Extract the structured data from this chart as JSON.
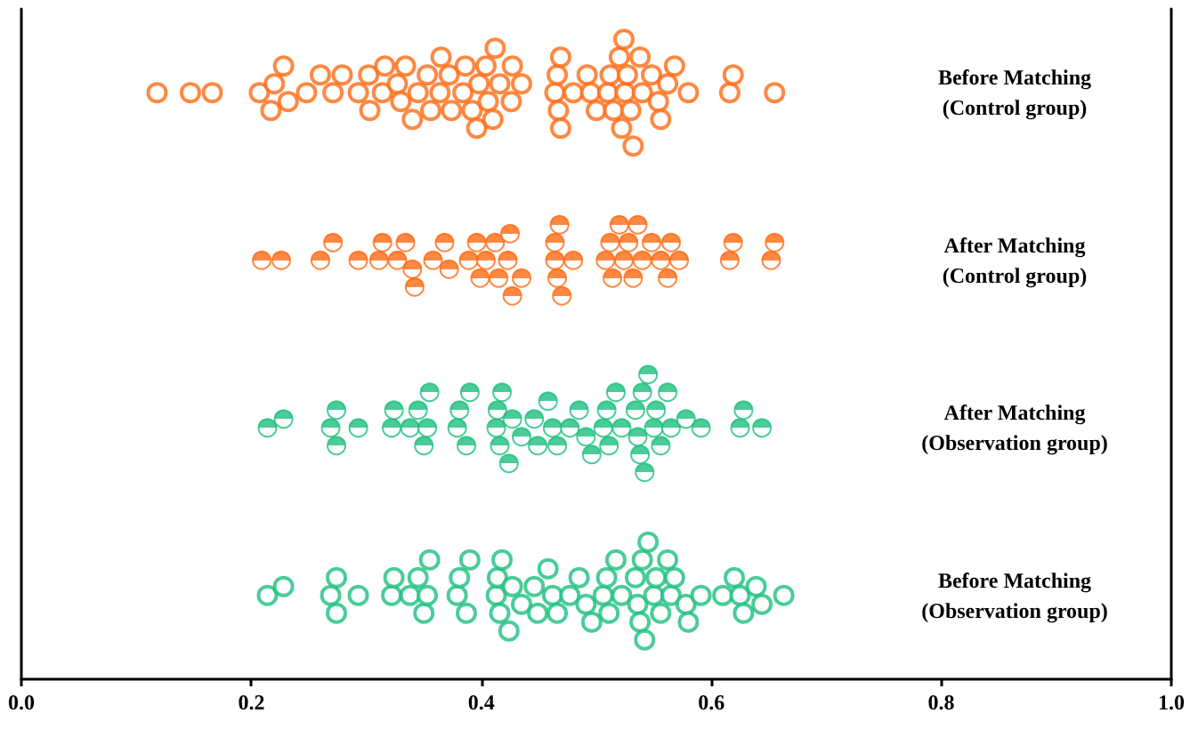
{
  "chart_data": {
    "type": "scatter",
    "orientation": "horizontal",
    "categories": [
      "Before Matching\n(Control group)",
      "After Matching\n(Control group)",
      "After Matching\n(Observation group)",
      "Before Matching\n(Observation group)"
    ],
    "xlim": [
      0,
      1
    ],
    "xticks": [
      {
        "value": 0,
        "label": "0.0"
      },
      {
        "value": 0.2,
        "label": "0.2"
      },
      {
        "value": 0.4,
        "label": "0.4"
      },
      {
        "value": 0.6,
        "label": "0.6"
      },
      {
        "value": 0.8,
        "label": "0.8"
      },
      {
        "value": 1,
        "label": "1.0"
      }
    ],
    "grid": false,
    "series": [
      {
        "color": "#ff6a13",
        "marker": "circle",
        "x": [
          "Before Matching\n(Control group)",
          "Before Matching\n(Control group)",
          "Before Matching\n(Control group)",
          "Before Matching\n(Control group)",
          "Before Matching\n(Control group)",
          "Before Matching\n(Control group)",
          "Before Matching\n(Control group)",
          "Before Matching\n(Control group)",
          "Before Matching\n(Control group)",
          "Before Matching\n(Control group)",
          "Before Matching\n(Control group)",
          "Before Matching\n(Control group)",
          "Before Matching\n(Control group)",
          "Before Matching\n(Control group)",
          "Before Matching\n(Control group)",
          "Before Matching\n(Control group)",
          "Before Matching\n(Control group)",
          "Before Matching\n(Control group)",
          "Before Matching\n(Control group)",
          "Before Matching\n(Control group)",
          "Before Matching\n(Control group)",
          "Before Matching\n(Control group)",
          "Before Matching\n(Control group)",
          "Before Matching\n(Control group)",
          "Before Matching\n(Control group)",
          "Before Matching\n(Control group)",
          "Before Matching\n(Control group)",
          "Before Matching\n(Control group)",
          "Before Matching\n(Control group)",
          "Before Matching\n(Control group)",
          "Before Matching\n(Control group)",
          "Before Matching\n(Control group)",
          "Before Matching\n(Control group)",
          "Before Matching\n(Control group)",
          "Before Matching\n(Control group)",
          "Before Matching\n(Control group)",
          "Before Matching\n(Control group)",
          "Before Matching\n(Control group)",
          "Before Matching\n(Control group)",
          "Before Matching\n(Control group)",
          "Before Matching\n(Control group)",
          "Before Matching\n(Control group)",
          "Before Matching\n(Control group)",
          "Before Matching\n(Control group)",
          "Before Matching\n(Control group)",
          "Before Matching\n(Control group)",
          "Before Matching\n(Control group)",
          "Before Matching\n(Control group)",
          "Before Matching\n(Control group)",
          "Before Matching\n(Control group)",
          "Before Matching\n(Control group)",
          "Before Matching\n(Control group)",
          "Before Matching\n(Control group)",
          "Before Matching\n(Control group)",
          "Before Matching\n(Control group)",
          "Before Matching\n(Control group)",
          "Before Matching\n(Control group)",
          "Before Matching\n(Control group)",
          "Before Matching\n(Control group)",
          "Before Matching\n(Control group)",
          "Before Matching\n(Control group)",
          "Before Matching\n(Control group)",
          "Before Matching\n(Control group)",
          "Before Matching\n(Control group)",
          "Before Matching\n(Control group)",
          "Before Matching\n(Control group)",
          "Before Matching\n(Control group)",
          "Before Matching\n(Control group)",
          "Before Matching\n(Control group)",
          "Before Matching\n(Control group)",
          "Before Matching\n(Control group)"
        ],
        "values": [
          0.118,
          0.147,
          0.166,
          0.207,
          0.22,
          0.217,
          0.228,
          0.232,
          0.248,
          0.26,
          0.271,
          0.279,
          0.293,
          0.302,
          0.303,
          0.314,
          0.316,
          0.327,
          0.33,
          0.334,
          0.34,
          0.345,
          0.353,
          0.356,
          0.364,
          0.365,
          0.372,
          0.374,
          0.384,
          0.386,
          0.392,
          0.396,
          0.398,
          0.404,
          0.406,
          0.41,
          0.412,
          0.416,
          0.426,
          0.427,
          0.435,
          0.464,
          0.466,
          0.467,
          0.469,
          0.469,
          0.48,
          0.492,
          0.495,
          0.5,
          0.51,
          0.512,
          0.515,
          0.52,
          0.522,
          0.524,
          0.525,
          0.527,
          0.53,
          0.532,
          0.538,
          0.54,
          0.548,
          0.554,
          0.556,
          0.562,
          0.568,
          0.58,
          0.616,
          0.619,
          0.655
        ]
      },
      {
        "color": "#ff6a13",
        "marker": "half-circle",
        "x": [
          "After Matching\n(Control group)",
          "After Matching\n(Control group)",
          "After Matching\n(Control group)",
          "After Matching\n(Control group)",
          "After Matching\n(Control group)",
          "After Matching\n(Control group)",
          "After Matching\n(Control group)",
          "After Matching\n(Control group)",
          "After Matching\n(Control group)",
          "After Matching\n(Control group)",
          "After Matching\n(Control group)",
          "After Matching\n(Control group)",
          "After Matching\n(Control group)",
          "After Matching\n(Control group)",
          "After Matching\n(Control group)",
          "After Matching\n(Control group)",
          "After Matching\n(Control group)",
          "After Matching\n(Control group)",
          "After Matching\n(Control group)",
          "After Matching\n(Control group)",
          "After Matching\n(Control group)",
          "After Matching\n(Control group)",
          "After Matching\n(Control group)",
          "After Matching\n(Control group)",
          "After Matching\n(Control group)",
          "After Matching\n(Control group)",
          "After Matching\n(Control group)",
          "After Matching\n(Control group)",
          "After Matching\n(Control group)",
          "After Matching\n(Control group)",
          "After Matching\n(Control group)",
          "After Matching\n(Control group)",
          "After Matching\n(Control group)",
          "After Matching\n(Control group)",
          "After Matching\n(Control group)",
          "After Matching\n(Control group)",
          "After Matching\n(Control group)",
          "After Matching\n(Control group)",
          "After Matching\n(Control group)",
          "After Matching\n(Control group)",
          "After Matching\n(Control group)",
          "After Matching\n(Control group)",
          "After Matching\n(Control group)",
          "After Matching\n(Control group)",
          "After Matching\n(Control group)",
          "After Matching\n(Control group)",
          "After Matching\n(Control group)",
          "After Matching\n(Control group)"
        ],
        "values": [
          0.209,
          0.226,
          0.26,
          0.271,
          0.293,
          0.311,
          0.314,
          0.327,
          0.334,
          0.34,
          0.342,
          0.358,
          0.368,
          0.372,
          0.389,
          0.396,
          0.399,
          0.404,
          0.412,
          0.415,
          0.423,
          0.425,
          0.427,
          0.435,
          0.464,
          0.464,
          0.466,
          0.468,
          0.47,
          0.48,
          0.508,
          0.512,
          0.514,
          0.52,
          0.524,
          0.528,
          0.532,
          0.536,
          0.54,
          0.548,
          0.556,
          0.562,
          0.565,
          0.572,
          0.616,
          0.619,
          0.652,
          0.655
        ]
      },
      {
        "color": "#1dbf7f",
        "marker": "half-circle",
        "x": [
          "After Matching\n(Observation group)",
          "After Matching\n(Observation group)",
          "After Matching\n(Observation group)",
          "After Matching\n(Observation group)",
          "After Matching\n(Observation group)",
          "After Matching\n(Observation group)",
          "After Matching\n(Observation group)",
          "After Matching\n(Observation group)",
          "After Matching\n(Observation group)",
          "After Matching\n(Observation group)",
          "After Matching\n(Observation group)",
          "After Matching\n(Observation group)",
          "After Matching\n(Observation group)",
          "After Matching\n(Observation group)",
          "After Matching\n(Observation group)",
          "After Matching\n(Observation group)",
          "After Matching\n(Observation group)",
          "After Matching\n(Observation group)",
          "After Matching\n(Observation group)",
          "After Matching\n(Observation group)",
          "After Matching\n(Observation group)",
          "After Matching\n(Observation group)",
          "After Matching\n(Observation group)",
          "After Matching\n(Observation group)",
          "After Matching\n(Observation group)",
          "After Matching\n(Observation group)",
          "After Matching\n(Observation group)",
          "After Matching\n(Observation group)",
          "After Matching\n(Observation group)",
          "After Matching\n(Observation group)",
          "After Matching\n(Observation group)",
          "After Matching\n(Observation group)",
          "After Matching\n(Observation group)",
          "After Matching\n(Observation group)",
          "After Matching\n(Observation group)",
          "After Matching\n(Observation group)",
          "After Matching\n(Observation group)",
          "After Matching\n(Observation group)",
          "After Matching\n(Observation group)",
          "After Matching\n(Observation group)",
          "After Matching\n(Observation group)",
          "After Matching\n(Observation group)",
          "After Matching\n(Observation group)",
          "After Matching\n(Observation group)",
          "After Matching\n(Observation group)",
          "After Matching\n(Observation group)",
          "After Matching\n(Observation group)",
          "After Matching\n(Observation group)",
          "After Matching\n(Observation group)",
          "After Matching\n(Observation group)",
          "After Matching\n(Observation group)",
          "After Matching\n(Observation group)",
          "After Matching\n(Observation group)",
          "After Matching\n(Observation group)"
        ],
        "values": [
          0.214,
          0.228,
          0.269,
          0.274,
          0.274,
          0.293,
          0.322,
          0.324,
          0.338,
          0.345,
          0.35,
          0.353,
          0.355,
          0.379,
          0.381,
          0.387,
          0.39,
          0.413,
          0.414,
          0.416,
          0.418,
          0.424,
          0.427,
          0.435,
          0.446,
          0.449,
          0.458,
          0.462,
          0.466,
          0.477,
          0.485,
          0.491,
          0.496,
          0.506,
          0.509,
          0.511,
          0.517,
          0.522,
          0.534,
          0.536,
          0.538,
          0.54,
          0.542,
          0.545,
          0.55,
          0.552,
          0.556,
          0.562,
          0.565,
          0.578,
          0.591,
          0.625,
          0.628,
          0.644
        ]
      },
      {
        "color": "#1dbf7f",
        "marker": "circle",
        "x": [
          "Before Matching\n(Observation group)",
          "Before Matching\n(Observation group)",
          "Before Matching\n(Observation group)",
          "Before Matching\n(Observation group)",
          "Before Matching\n(Observation group)",
          "Before Matching\n(Observation group)",
          "Before Matching\n(Observation group)",
          "Before Matching\n(Observation group)",
          "Before Matching\n(Observation group)",
          "Before Matching\n(Observation group)",
          "Before Matching\n(Observation group)",
          "Before Matching\n(Observation group)",
          "Before Matching\n(Observation group)",
          "Before Matching\n(Observation group)",
          "Before Matching\n(Observation group)",
          "Before Matching\n(Observation group)",
          "Before Matching\n(Observation group)",
          "Before Matching\n(Observation group)",
          "Before Matching\n(Observation group)",
          "Before Matching\n(Observation group)",
          "Before Matching\n(Observation group)",
          "Before Matching\n(Observation group)",
          "Before Matching\n(Observation group)",
          "Before Matching\n(Observation group)",
          "Before Matching\n(Observation group)",
          "Before Matching\n(Observation group)",
          "Before Matching\n(Observation group)",
          "Before Matching\n(Observation group)",
          "Before Matching\n(Observation group)",
          "Before Matching\n(Observation group)",
          "Before Matching\n(Observation group)",
          "Before Matching\n(Observation group)",
          "Before Matching\n(Observation group)",
          "Before Matching\n(Observation group)",
          "Before Matching\n(Observation group)",
          "Before Matching\n(Observation group)",
          "Before Matching\n(Observation group)",
          "Before Matching\n(Observation group)",
          "Before Matching\n(Observation group)",
          "Before Matching\n(Observation group)",
          "Before Matching\n(Observation group)",
          "Before Matching\n(Observation group)",
          "Before Matching\n(Observation group)",
          "Before Matching\n(Observation group)",
          "Before Matching\n(Observation group)",
          "Before Matching\n(Observation group)",
          "Before Matching\n(Observation group)",
          "Before Matching\n(Observation group)",
          "Before Matching\n(Observation group)",
          "Before Matching\n(Observation group)",
          "Before Matching\n(Observation group)",
          "Before Matching\n(Observation group)",
          "Before Matching\n(Observation group)",
          "Before Matching\n(Observation group)",
          "Before Matching\n(Observation group)",
          "Before Matching\n(Observation group)",
          "Before Matching\n(Observation group)",
          "Before Matching\n(Observation group)",
          "Before Matching\n(Observation group)",
          "Before Matching\n(Observation group)"
        ],
        "values": [
          0.214,
          0.228,
          0.269,
          0.274,
          0.274,
          0.293,
          0.322,
          0.324,
          0.338,
          0.345,
          0.35,
          0.353,
          0.355,
          0.379,
          0.381,
          0.387,
          0.39,
          0.413,
          0.414,
          0.416,
          0.418,
          0.424,
          0.427,
          0.435,
          0.446,
          0.449,
          0.458,
          0.462,
          0.466,
          0.477,
          0.485,
          0.491,
          0.496,
          0.506,
          0.509,
          0.511,
          0.517,
          0.522,
          0.534,
          0.536,
          0.538,
          0.54,
          0.542,
          0.545,
          0.55,
          0.552,
          0.556,
          0.562,
          0.565,
          0.568,
          0.578,
          0.58,
          0.591,
          0.61,
          0.62,
          0.625,
          0.628,
          0.639,
          0.644,
          0.663
        ]
      }
    ]
  }
}
